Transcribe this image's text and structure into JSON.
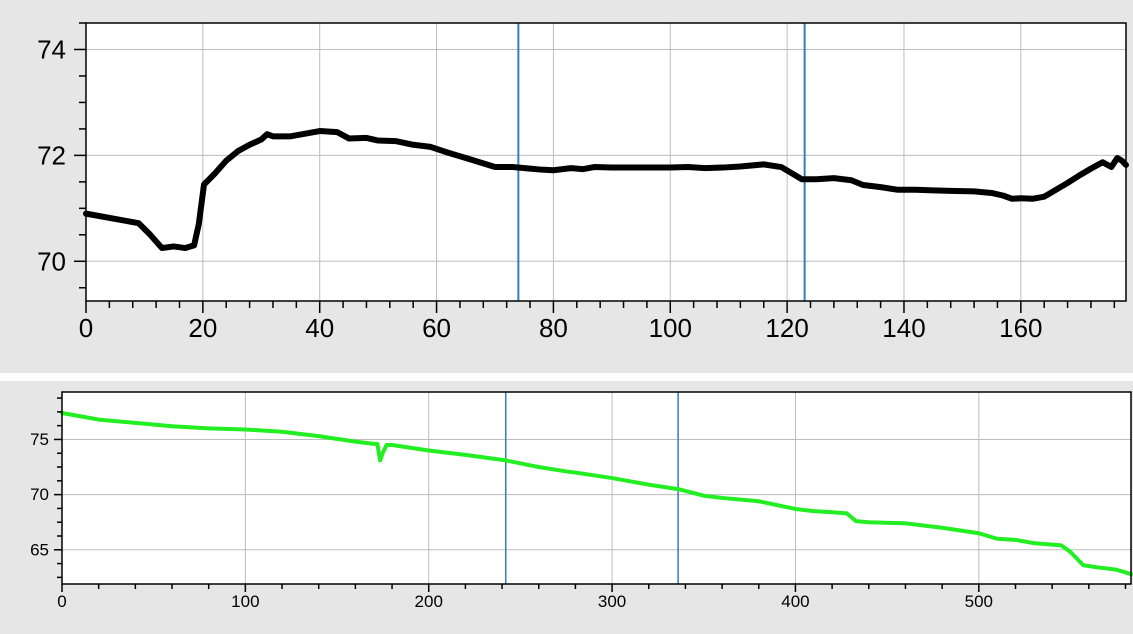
{
  "colors": {
    "background": "#e6e6e6",
    "plot_bg": "#ffffff",
    "grid": "#bdbdbd",
    "cursor": "#2f7fc1"
  },
  "chart_data": [
    {
      "type": "line",
      "title": "",
      "xlabel": "",
      "ylabel": "",
      "xlim": [
        0,
        178
      ],
      "ylim": [
        69.25,
        74.5
      ],
      "grid": true,
      "legend": "none",
      "x_ticks": [
        0,
        20,
        40,
        60,
        80,
        100,
        120,
        140,
        160
      ],
      "y_ticks": [
        70,
        72,
        74
      ],
      "cursors": [
        74,
        123
      ],
      "series": [
        {
          "color": "#000000",
          "points": [
            [
              0,
              70.9
            ],
            [
              5,
              70.8
            ],
            [
              9,
              70.72
            ],
            [
              11,
              70.5
            ],
            [
              13,
              70.25
            ],
            [
              15,
              70.28
            ],
            [
              17,
              70.25
            ],
            [
              18.5,
              70.3
            ],
            [
              19.3,
              70.7
            ],
            [
              20.2,
              71.45
            ],
            [
              22,
              71.65
            ],
            [
              24,
              71.9
            ],
            [
              26,
              72.08
            ],
            [
              28,
              72.2
            ],
            [
              30,
              72.3
            ],
            [
              31,
              72.4
            ],
            [
              32,
              72.36
            ],
            [
              35,
              72.36
            ],
            [
              38,
              72.42
            ],
            [
              40,
              72.46
            ],
            [
              43,
              72.44
            ],
            [
              45,
              72.32
            ],
            [
              48,
              72.33
            ],
            [
              50,
              72.28
            ],
            [
              53,
              72.27
            ],
            [
              56,
              72.2
            ],
            [
              59,
              72.16
            ],
            [
              62,
              72.05
            ],
            [
              65,
              71.95
            ],
            [
              68,
              71.85
            ],
            [
              70,
              71.78
            ],
            [
              73,
              71.78
            ],
            [
              76,
              71.75
            ],
            [
              78,
              71.73
            ],
            [
              80,
              71.72
            ],
            [
              83,
              71.76
            ],
            [
              85,
              71.74
            ],
            [
              87,
              71.78
            ],
            [
              90,
              71.77
            ],
            [
              95,
              71.77
            ],
            [
              100,
              71.77
            ],
            [
              103,
              71.78
            ],
            [
              106,
              71.76
            ],
            [
              109,
              71.77
            ],
            [
              112,
              71.79
            ],
            [
              116,
              71.83
            ],
            [
              119,
              71.78
            ],
            [
              121,
              71.65
            ],
            [
              122.5,
              71.55
            ],
            [
              125,
              71.55
            ],
            [
              128,
              71.57
            ],
            [
              131,
              71.53
            ],
            [
              133,
              71.44
            ],
            [
              136,
              71.4
            ],
            [
              139,
              71.35
            ],
            [
              142,
              71.35
            ],
            [
              145,
              71.34
            ],
            [
              148,
              71.33
            ],
            [
              152,
              71.32
            ],
            [
              155,
              71.29
            ],
            [
              157,
              71.24
            ],
            [
              158.5,
              71.18
            ],
            [
              160,
              71.19
            ],
            [
              162,
              71.18
            ],
            [
              164,
              71.22
            ],
            [
              166,
              71.35
            ],
            [
              168,
              71.48
            ],
            [
              170,
              71.62
            ],
            [
              172,
              71.75
            ],
            [
              174,
              71.87
            ],
            [
              175.5,
              71.78
            ],
            [
              176.5,
              71.95
            ],
            [
              177.3,
              71.9
            ],
            [
              178,
              71.82
            ]
          ]
        }
      ]
    },
    {
      "type": "line",
      "title": "",
      "xlabel": "",
      "ylabel": "",
      "xlim": [
        0,
        583
      ],
      "ylim": [
        61.9,
        79.3
      ],
      "grid": true,
      "legend": "none",
      "x_ticks": [
        0,
        100,
        200,
        300,
        400,
        500
      ],
      "y_ticks": [
        65,
        70,
        75
      ],
      "cursors": [
        242,
        336
      ],
      "series": [
        {
          "color": "#22ee22",
          "points": [
            [
              0,
              77.4
            ],
            [
              10,
              77.1
            ],
            [
              20,
              76.8
            ],
            [
              40,
              76.5
            ],
            [
              60,
              76.2
            ],
            [
              80,
              76.0
            ],
            [
              100,
              75.9
            ],
            [
              120,
              75.7
            ],
            [
              140,
              75.3
            ],
            [
              160,
              74.8
            ],
            [
              170,
              74.6
            ],
            [
              172,
              74.6
            ],
            [
              173.5,
              73.1
            ],
            [
              175,
              73.8
            ],
            [
              177,
              74.5
            ],
            [
              180,
              74.5
            ],
            [
              200,
              74.0
            ],
            [
              220,
              73.6
            ],
            [
              242,
              73.1
            ],
            [
              260,
              72.5
            ],
            [
              275,
              72.1
            ],
            [
              280,
              72.0
            ],
            [
              300,
              71.5
            ],
            [
              320,
              70.9
            ],
            [
              336,
              70.5
            ],
            [
              350,
              69.9
            ],
            [
              360,
              69.7
            ],
            [
              380,
              69.4
            ],
            [
              400,
              68.7
            ],
            [
              410,
              68.5
            ],
            [
              420,
              68.4
            ],
            [
              428,
              68.3
            ],
            [
              433,
              67.6
            ],
            [
              440,
              67.5
            ],
            [
              460,
              67.4
            ],
            [
              480,
              67.0
            ],
            [
              500,
              66.5
            ],
            [
              510,
              66.0
            ],
            [
              520,
              65.9
            ],
            [
              530,
              65.6
            ],
            [
              545,
              65.4
            ],
            [
              550,
              64.8
            ],
            [
              557,
              63.6
            ],
            [
              565,
              63.4
            ],
            [
              575,
              63.2
            ],
            [
              583,
              62.8
            ]
          ]
        }
      ]
    }
  ]
}
